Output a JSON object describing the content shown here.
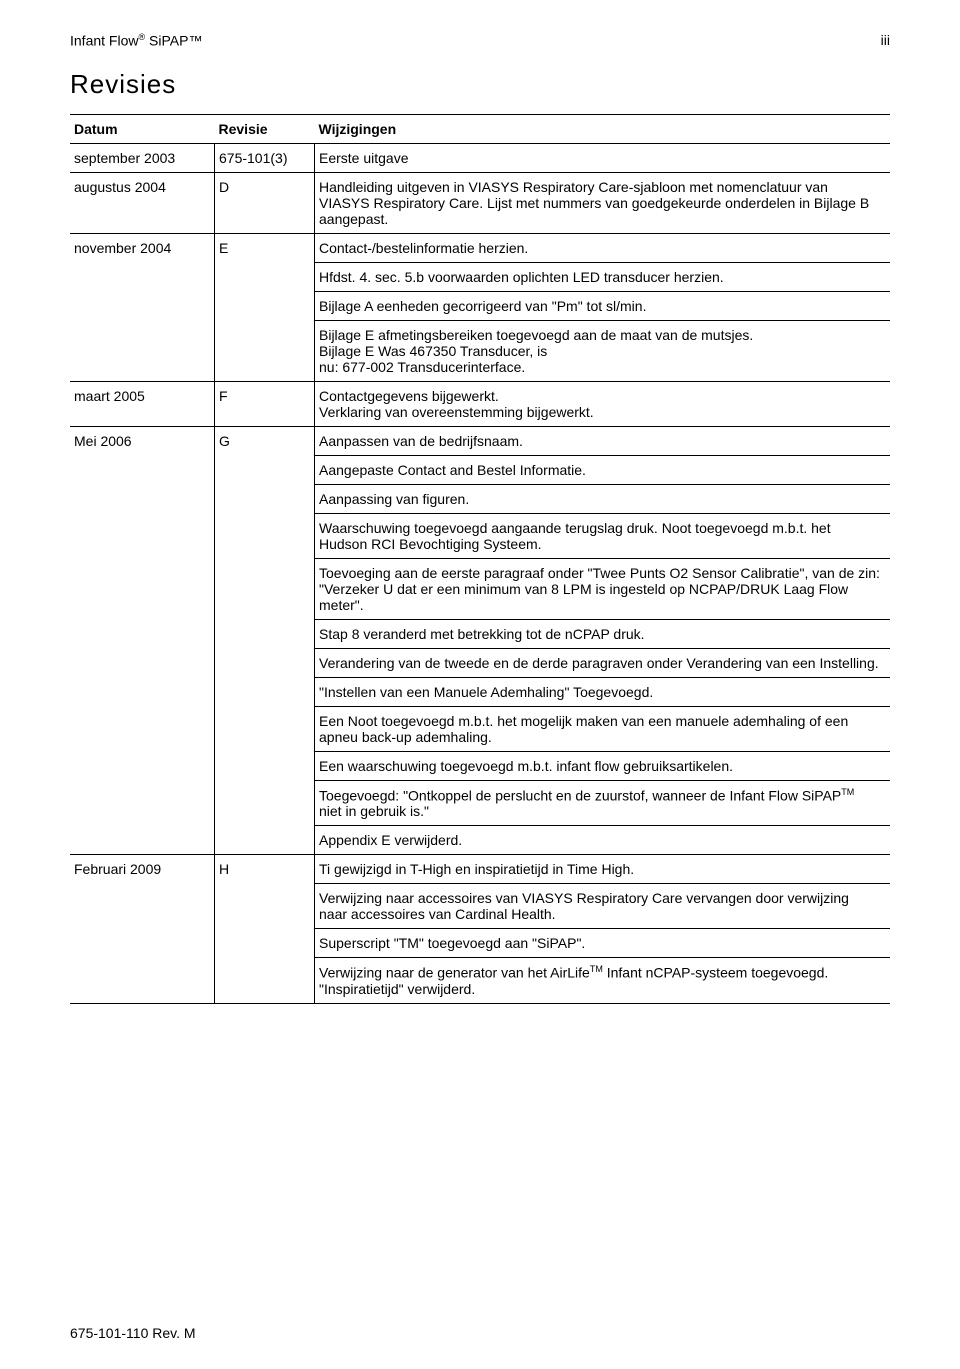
{
  "header": {
    "product_prefix": "Infant Flow",
    "reg_mark": "®",
    "product_suffix": " SiPAP™",
    "page_num": "iii"
  },
  "section_title": "Revisies",
  "columns": {
    "date": "Datum",
    "rev": "Revisie",
    "changes": "Wijzigingen"
  },
  "rows": [
    {
      "date": "september 2003",
      "rev": "675-101(3)",
      "changes": [
        "Eerste uitgave"
      ]
    },
    {
      "date": "augustus 2004",
      "rev": "D",
      "changes": [
        "Handleiding uitgeven in VIASYS Respiratory Care-sjabloon met nomenclatuur van VIASYS Respiratory Care. Lijst met nummers van goedgekeurde onderdelen in Bijlage B aangepast."
      ]
    },
    {
      "date": "november 2004",
      "rev": "E",
      "changes": [
        "Contact-/bestelinformatie herzien.",
        "Hfdst. 4. sec. 5.b voorwaarden oplichten LED transducer herzien.",
        "Bijlage A eenheden gecorrigeerd van \"Pm\" tot sl/min.",
        "Bijlage E afmetingsbereiken toegevoegd aan de maat van de mutsjes.\nBijlage E Was 467350 Transducer, is\nnu: 677-002 Transducerinterface."
      ]
    },
    {
      "date": "maart 2005",
      "rev": "F",
      "changes": [
        "Contactgegevens bijgewerkt.\nVerklaring van overeenstemming bijgewerkt."
      ]
    },
    {
      "date": "Mei 2006",
      "rev": "G",
      "changes": [
        "Aanpassen van de bedrijfsnaam.",
        "Aangepaste Contact and Bestel Informatie.",
        "Aanpassing van figuren.",
        "Waarschuwing toegevoegd aangaande terugslag druk. Noot toegevoegd m.b.t. het Hudson RCI Bevochtiging Systeem.",
        "Toevoeging aan de eerste paragraaf onder \"Twee Punts O2 Sensor Calibratie\", van de zin: \"Verzeker U dat er een minimum van 8 LPM is ingesteld op NCPAP/DRUK Laag Flow meter\".",
        "Stap 8 veranderd met betrekking tot de  nCPAP druk.",
        "Verandering van de tweede en de derde paragraven onder Verandering van een Instelling.",
        "\"Instellen van een Manuele Ademhaling\" Toegevoegd.",
        "Een Noot toegevoegd m.b.t. het mogelijk maken van een manuele ademhaling of een apneu back-up ademhaling.",
        "Een waarschuwing toegevoegd m.b.t. infant flow gebruiksartikelen.",
        {
          "html": "Toegevoegd: \"Ontkoppel de perslucht en de zuurstof, wanneer de Infant Flow SiPAP<sup class='tm'>TM</sup> niet in gebruik is.\""
        },
        "Appendix E verwijderd."
      ]
    },
    {
      "date": "Februari 2009",
      "rev": "H",
      "changes": [
        "Ti gewijzigd in T-High en inspiratietijd in Time High.",
        "Verwijzing naar accessoires van VIASYS Respiratory Care vervangen door verwijzing naar accessoires van Cardinal Health.",
        "Superscript \"TM\" toegevoegd aan \"SiPAP\".",
        {
          "html": "Verwijzing naar de generator van het AirLife<sup class='tm'>TM</sup> Infant nCPAP-systeem toegevoegd.<br>\"Inspiratietijd\" verwijderd."
        }
      ]
    }
  ],
  "footer": "675-101-110 Rev. M"
}
